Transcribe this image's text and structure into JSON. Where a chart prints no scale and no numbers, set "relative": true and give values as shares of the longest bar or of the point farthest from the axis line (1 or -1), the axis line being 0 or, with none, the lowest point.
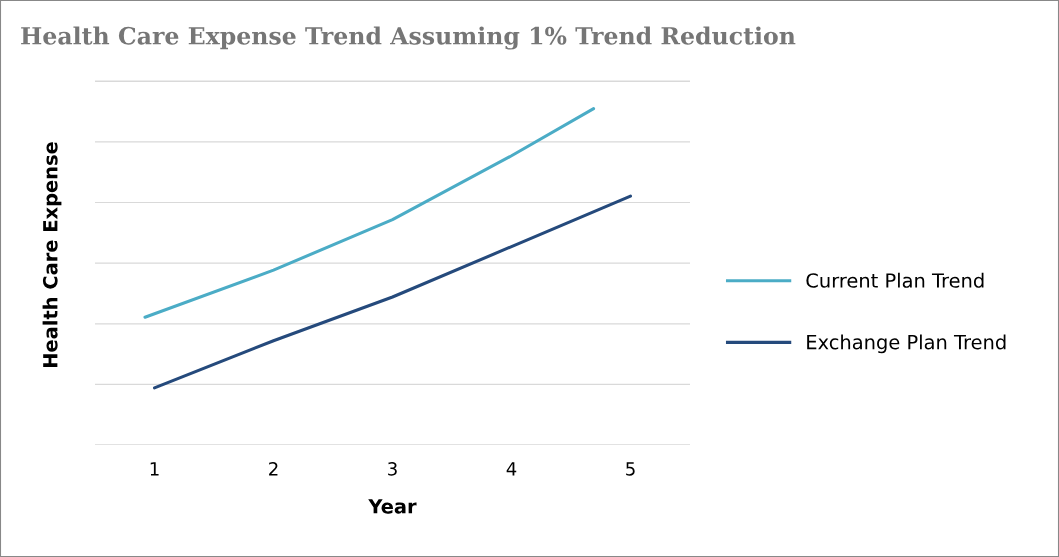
{
  "chart_data": {
    "type": "line",
    "title": "Health Care Expense Trend Assuming 1% Trend Reduction",
    "xlabel": "Year",
    "ylabel": "Health Care Expense",
    "relative": true,
    "xlim": [
      0.5,
      5.5
    ],
    "xticks": [
      1,
      2,
      3,
      4,
      5
    ],
    "grid": "y",
    "legend": "right",
    "marker": "none",
    "line_style": "solid",
    "series": [
      {
        "name": "Current Plan Trend",
        "color": "#4bacc6",
        "x": [
          0.92,
          2,
          3,
          4,
          4.69
        ],
        "values": [
          0.38,
          0.52,
          0.67,
          0.86,
          1.0
        ]
      },
      {
        "name": "Exchange Plan Trend",
        "color": "#254a7c",
        "x": [
          1,
          2,
          3,
          4,
          5
        ],
        "values": [
          0.17,
          0.31,
          0.44,
          0.59,
          0.74
        ]
      }
    ]
  }
}
